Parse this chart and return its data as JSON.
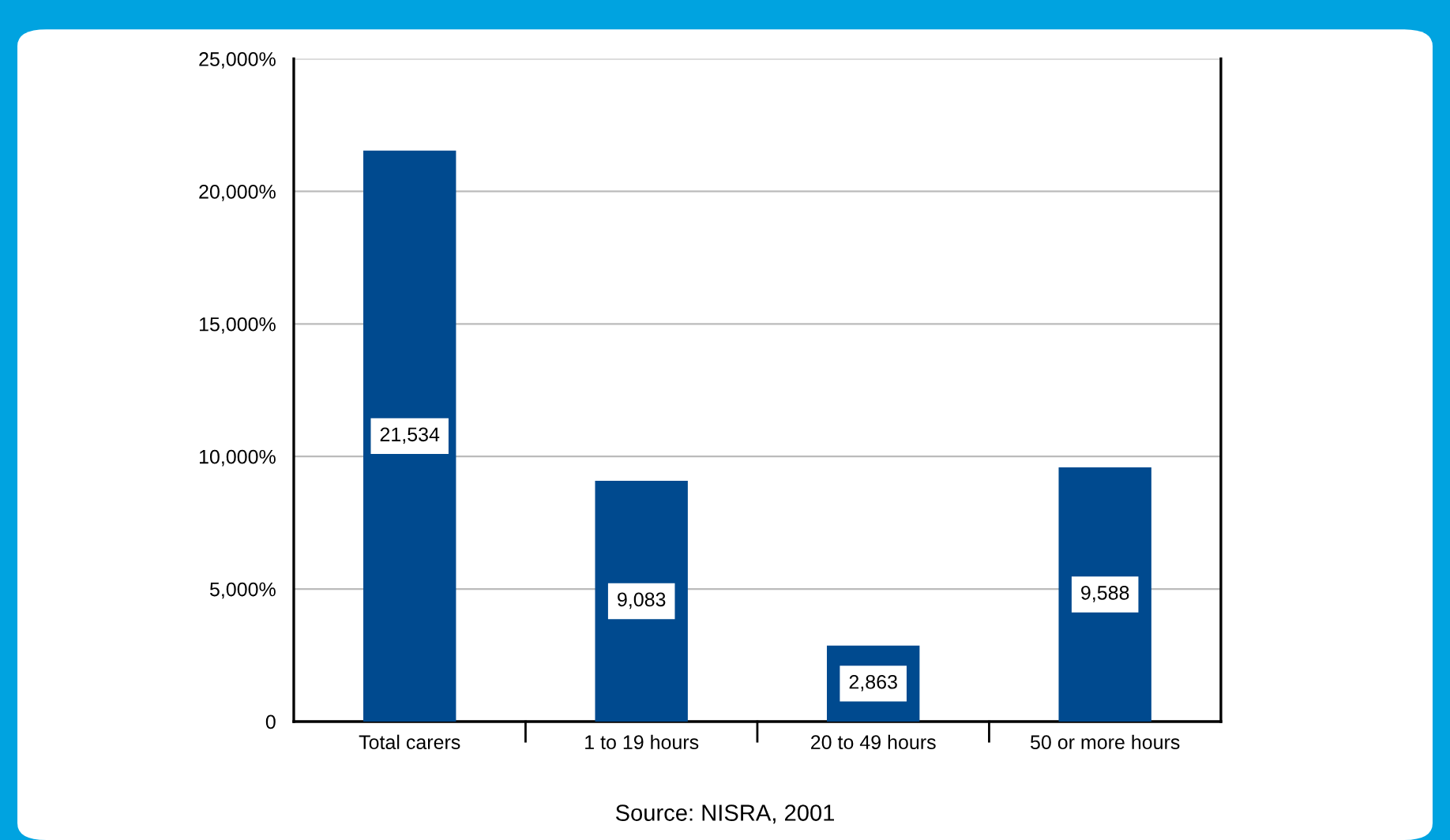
{
  "chart_data": {
    "type": "bar",
    "categories": [
      "Total carers",
      "1 to 19 hours",
      "20 to 49 hours",
      "50 or more hours"
    ],
    "values": [
      21534,
      9083,
      2863,
      9588
    ],
    "color": "#004a8f",
    "ylim": [
      0,
      25000
    ],
    "yticks": [
      0,
      {
        "value": 5000,
        "label": "5,000%"
      },
      {
        "value": 10000,
        "label": "10,000%"
      },
      {
        "value": 15000,
        "label": "15,000%"
      },
      {
        "value": 20000,
        "label": "20,000%"
      },
      {
        "value": 25000,
        "label": "25,000%"
      }
    ],
    "grid": "y",
    "value_labels": [
      "21,534",
      "9,083",
      "2,863",
      "9,588"
    ],
    "annotations": [
      "Source: NISRA, 2001"
    ]
  }
}
